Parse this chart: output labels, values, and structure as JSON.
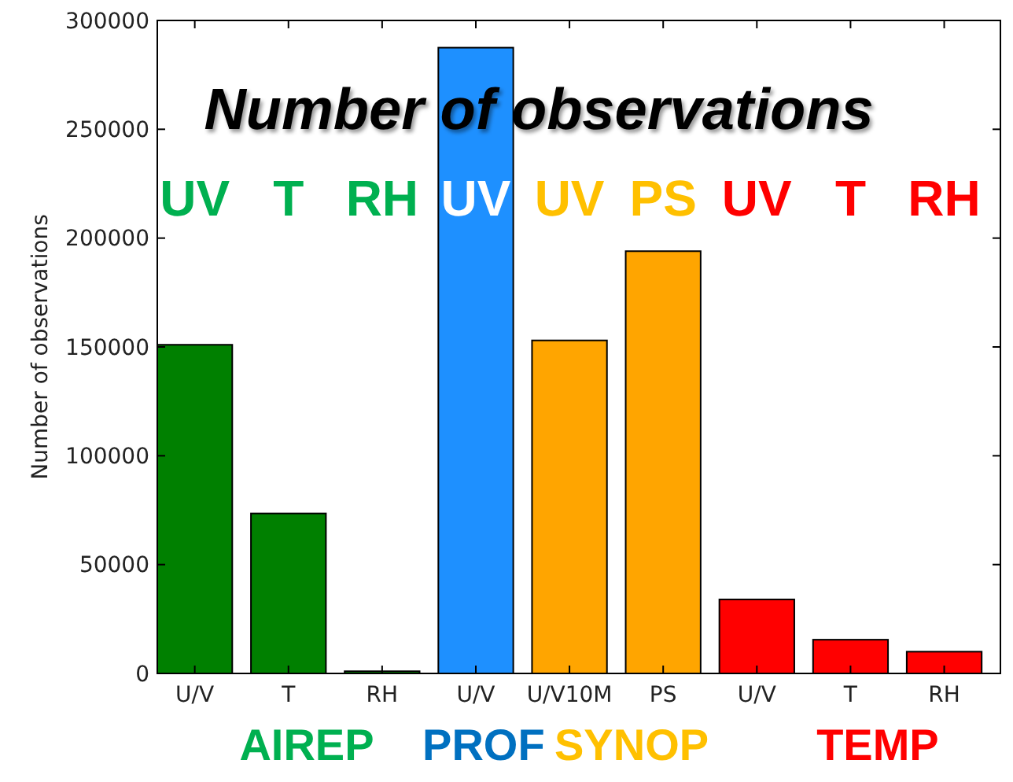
{
  "chart_data": {
    "type": "bar",
    "title": "Number of observations",
    "ylabel": "Number of observations",
    "categories": [
      "U/V",
      "T",
      "RH",
      "U/V",
      "U/V10M",
      "PS",
      "U/V",
      "T",
      "RH"
    ],
    "values": [
      151000,
      73500,
      1000,
      287500,
      153000,
      194000,
      34000,
      15500,
      10000
    ],
    "colors": [
      "#008000",
      "#008000",
      "#008000",
      "#1e90ff",
      "#ffa500",
      "#ffa500",
      "#ff0000",
      "#ff0000",
      "#ff0000"
    ],
    "ylim": [
      0,
      300000
    ],
    "yticks": [
      0,
      50000,
      100000,
      150000,
      200000,
      250000,
      300000
    ],
    "annotations": [
      "UV",
      "T",
      "RH",
      "UV",
      "UV",
      "PS",
      "UV",
      "T",
      "RH",
      "AIREP",
      "PROF",
      "SYNOP",
      "TEMP"
    ]
  }
}
